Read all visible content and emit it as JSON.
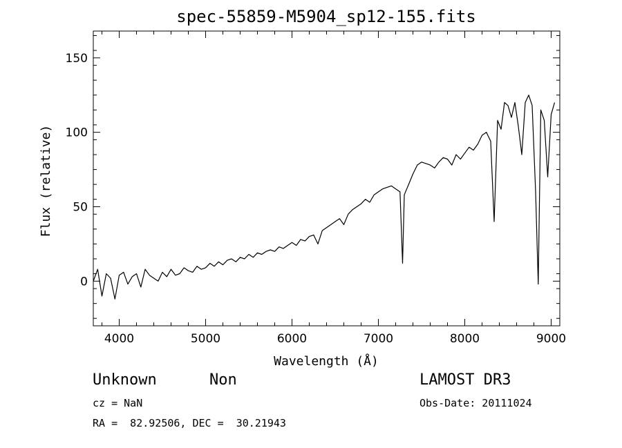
{
  "chart_data": {
    "type": "line",
    "title": "spec-55859-M5904_sp12-155.fits",
    "xlabel": "Wavelength (Å)",
    "ylabel": "Flux (relative)",
    "xlim": [
      3700,
      9100
    ],
    "ylim": [
      -30,
      168
    ],
    "xticks": [
      4000,
      5000,
      6000,
      7000,
      8000,
      9000
    ],
    "yticks": [
      0,
      50,
      100,
      150
    ],
    "x": [
      3700,
      3750,
      3800,
      3850,
      3900,
      3950,
      4000,
      4050,
      4100,
      4150,
      4200,
      4250,
      4300,
      4350,
      4400,
      4450,
      4500,
      4550,
      4600,
      4650,
      4700,
      4750,
      4800,
      4850,
      4900,
      4950,
      5000,
      5050,
      5100,
      5150,
      5200,
      5250,
      5300,
      5350,
      5400,
      5450,
      5500,
      5550,
      5600,
      5650,
      5700,
      5750,
      5800,
      5850,
      5900,
      5950,
      6000,
      6050,
      6100,
      6150,
      6200,
      6250,
      6300,
      6350,
      6400,
      6450,
      6500,
      6550,
      6600,
      6650,
      6700,
      6750,
      6800,
      6850,
      6900,
      6950,
      7000,
      7050,
      7100,
      7150,
      7200,
      7250,
      7280,
      7300,
      7350,
      7400,
      7450,
      7500,
      7550,
      7600,
      7650,
      7700,
      7750,
      7800,
      7850,
      7900,
      7950,
      8000,
      8050,
      8100,
      8150,
      8200,
      8250,
      8300,
      8340,
      8380,
      8420,
      8460,
      8500,
      8540,
      8580,
      8620,
      8660,
      8700,
      8740,
      8780,
      8820,
      8850,
      8880,
      8920,
      8960,
      9000,
      9040
    ],
    "y": [
      0,
      8,
      -10,
      5,
      2,
      -12,
      4,
      6,
      -2,
      3,
      5,
      -4,
      8,
      4,
      2,
      0,
      6,
      3,
      8,
      4,
      5,
      9,
      7,
      6,
      10,
      8,
      9,
      12,
      10,
      13,
      11,
      14,
      15,
      13,
      16,
      15,
      18,
      16,
      19,
      18,
      20,
      21,
      20,
      23,
      22,
      24,
      26,
      24,
      28,
      27,
      30,
      31,
      25,
      34,
      36,
      38,
      40,
      42,
      38,
      45,
      48,
      50,
      52,
      55,
      53,
      58,
      60,
      62,
      63,
      64,
      62,
      60,
      12,
      58,
      65,
      72,
      78,
      80,
      79,
      78,
      76,
      80,
      83,
      82,
      78,
      85,
      82,
      86,
      90,
      88,
      92,
      98,
      100,
      94,
      40,
      108,
      102,
      120,
      118,
      110,
      120,
      104,
      85,
      120,
      125,
      118,
      60,
      -2,
      115,
      108,
      70,
      112,
      120
    ],
    "series_name": "Flux"
  },
  "meta": {
    "class": "Unknown",
    "subclass": "Non",
    "survey": "LAMOST DR3",
    "cz": "cz = NaN",
    "obsdate": "Obs-Date: 20111024",
    "coords": "RA =  82.92506, DEC =  30.21943"
  }
}
